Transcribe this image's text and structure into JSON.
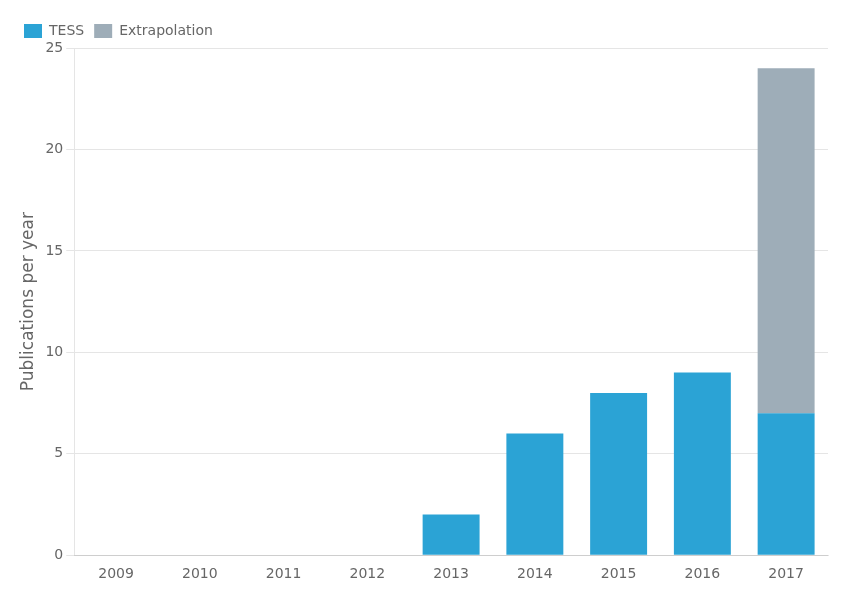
{
  "chart_data": {
    "type": "bar",
    "ylabel": "Publications per year",
    "categories": [
      "2009",
      "2010",
      "2011",
      "2012",
      "2013",
      "2014",
      "2015",
      "2016",
      "2017"
    ],
    "series": [
      {
        "name": "TESS",
        "color": "#2ba3d5",
        "values": [
          0,
          0,
          0,
          0,
          2,
          6,
          8,
          9,
          7
        ]
      },
      {
        "name": "Extrapolation",
        "color": "#9eadb8",
        "values": [
          0,
          0,
          0,
          0,
          0,
          0,
          0,
          0,
          17
        ]
      }
    ],
    "stacked": true,
    "ylim": [
      0,
      25
    ],
    "yticks": [
      0,
      5,
      10,
      15,
      20,
      25
    ],
    "grid": true,
    "legend": "upper left"
  }
}
